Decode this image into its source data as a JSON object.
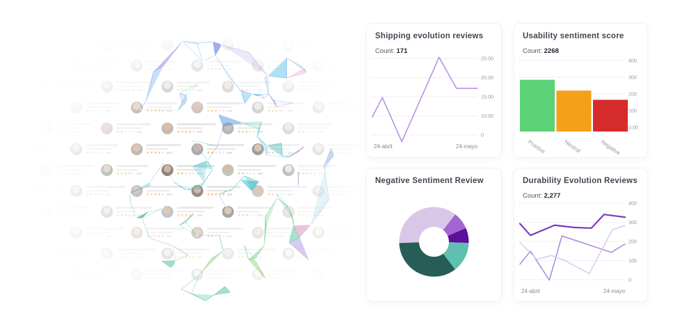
{
  "page": {
    "background": "#ffffff"
  },
  "cards": {
    "shipping": {
      "title": "Shipping evolution reviews",
      "count_label": "Count:",
      "count_value": "171"
    },
    "usability": {
      "title": "Usability sentiment score",
      "count_label": "Count:",
      "count_value": "2268"
    },
    "negative_sentiment": {
      "title": "Negative Sentiment Review"
    },
    "durability": {
      "title": "Durability Evolution Reviews",
      "count_label": "Count:",
      "count_value": "2,277"
    }
  },
  "chart_data": [
    {
      "id": "shipping",
      "type": "line",
      "title": "Shipping evolution reviews",
      "count": 171,
      "grid": true,
      "legend": "none",
      "x_axis": {
        "labels": [
          "24-abril",
          "24-mayo"
        ]
      },
      "y_ticks": [
        "25.00",
        "20.00",
        "15.00",
        "10.00",
        "0"
      ],
      "y_tick_values": [
        25,
        20,
        15,
        10,
        0
      ],
      "series": [
        {
          "name": "shipping-reviews",
          "color": "#b793e3",
          "width": 1.6,
          "x": [
            0,
            0.095,
            0.28,
            0.635,
            0.8,
            1
          ],
          "values": [
            9.5,
            14.8,
            -3.5,
            25.3,
            17.2,
            17.2
          ]
        }
      ]
    },
    {
      "id": "usability",
      "type": "bar",
      "title": "Usability sentiment score",
      "count": 2268,
      "grid": true,
      "legend": "none",
      "categories": [
        "Positive",
        "Neutral",
        "Negative"
      ],
      "values": [
        285,
        220,
        165
      ],
      "colors": [
        "#5cd175",
        "#f4a018",
        "#d62b2b"
      ],
      "y_ticks": [
        "400",
        "300",
        "200",
        "100",
        "0.00"
      ],
      "y_tick_values": [
        400,
        300,
        200,
        100,
        0
      ],
      "ylim": [
        0,
        400
      ]
    },
    {
      "id": "negative_sentiment",
      "type": "pie",
      "title": "Negative Sentiment Review",
      "donut": true,
      "inner_radius_ratio": 0.43,
      "start_angle_deg_cw_from_top": 268,
      "slices": [
        {
          "name": "slice-lavender",
          "percent": 36,
          "color": "#d9c7e8"
        },
        {
          "name": "slice-purple",
          "percent": 8,
          "color": "#a365d2"
        },
        {
          "name": "slice-dark-purple",
          "percent": 7,
          "color": "#5c0f9b"
        },
        {
          "name": "slice-seafoam",
          "percent": 14,
          "color": "#5fbfb0"
        },
        {
          "name": "slice-dark-teal",
          "percent": 35,
          "color": "#265d57"
        }
      ]
    },
    {
      "id": "durability",
      "type": "line",
      "title": "Durability Evolution Reviews",
      "count": 2277,
      "grid": true,
      "legend": "none",
      "x_axis": {
        "labels": [
          "24-abril",
          "24-mayo"
        ]
      },
      "y_ticks": [
        "400",
        "300",
        "200",
        "100",
        "0"
      ],
      "y_tick_values": [
        400,
        300,
        200,
        100,
        0
      ],
      "series": [
        {
          "name": "series-dark",
          "color": "#7c3abf",
          "width": 2.2,
          "x": [
            0,
            0.1,
            0.33,
            0.52,
            0.68,
            0.8,
            1
          ],
          "values": [
            293,
            232,
            285,
            273,
            270,
            341,
            327
          ]
        },
        {
          "name": "series-medium",
          "color": "#a887de",
          "width": 1.5,
          "x": [
            0,
            0.1,
            0.28,
            0.4,
            0.87,
            1
          ],
          "values": [
            81,
            150,
            -2,
            229,
            143,
            187
          ]
        },
        {
          "name": "series-light",
          "color": "#d7cbee",
          "width": 1.5,
          "x": [
            0,
            0.16,
            0.3,
            0.43,
            0.66,
            0.88,
            1
          ],
          "values": [
            195,
            107,
            127,
            100,
            32,
            262,
            283
          ]
        }
      ]
    }
  ],
  "decor": {
    "review_star_filled": "#f09f2e",
    "review_star_empty": "#d8d8d8",
    "review_bar_color": "#dcdcdc",
    "avatar_palette": [
      "#b7a79b",
      "#90867c",
      "#a9968b",
      "#83919a",
      "#a5ad9e",
      "#b99a85",
      "#6e5a4e",
      "#4e6151"
    ],
    "mesh_palette": {
      "top": [
        "#6a8fe8",
        "#4fc3f7",
        "#8b6fd8",
        "#43b8e8",
        "#5aa0f0",
        "#9b7fe0"
      ],
      "middle": [
        "#26b8cc",
        "#49a8e0",
        "#38bdae",
        "#7dd4e0",
        "#4f8fe0",
        "#2bb3a0"
      ],
      "bottom": [
        "#58c06a",
        "#7ecb8a",
        "#2aa88a",
        "#8fd06a",
        "#3db89a",
        "#49c48f"
      ],
      "accent_right": [
        "#d88bc0",
        "#a98be0",
        "#88c8e8"
      ]
    }
  }
}
